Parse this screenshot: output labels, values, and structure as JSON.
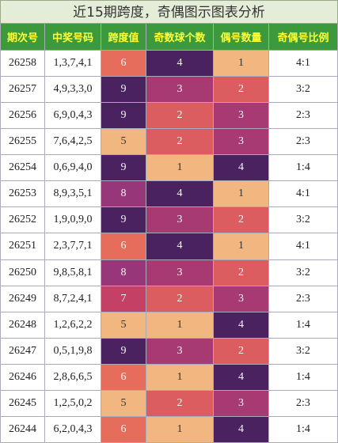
{
  "title": "近15期跨度，奇偶图示图表分析",
  "table": {
    "headers": [
      "期次号",
      "中奖号码",
      "跨度值",
      "奇数球个数",
      "偶号数量",
      "奇偶号比例"
    ],
    "rows": [
      [
        26258,
        "1,3,7,4,1",
        6,
        4,
        1,
        "4:1"
      ],
      [
        26257,
        "4,9,3,3,0",
        9,
        3,
        2,
        "3:2"
      ],
      [
        26256,
        "6,9,0,4,3",
        9,
        2,
        3,
        "2:3"
      ],
      [
        26255,
        "7,6,4,2,5",
        5,
        2,
        3,
        "2:3"
      ],
      [
        26254,
        "0,6,9,4,0",
        9,
        1,
        4,
        "1:4"
      ],
      [
        26253,
        "8,9,3,5,1",
        8,
        4,
        1,
        "4:1"
      ],
      [
        26252,
        "1,9,0,9,0",
        9,
        3,
        2,
        "3:2"
      ],
      [
        26251,
        "2,3,7,7,1",
        6,
        4,
        1,
        "4:1"
      ],
      [
        26250,
        "9,8,5,8,1",
        8,
        3,
        2,
        "3:2"
      ],
      [
        26249,
        "8,7,2,4,1",
        7,
        2,
        3,
        "2:3"
      ],
      [
        26248,
        "1,2,6,2,2",
        5,
        1,
        4,
        "1:4"
      ],
      [
        26247,
        "0,5,1,9,8",
        9,
        3,
        2,
        "3:2"
      ],
      [
        26246,
        "2,8,6,6,5",
        6,
        1,
        4,
        "1:4"
      ],
      [
        26245,
        "1,2,5,0,2",
        5,
        2,
        3,
        "2:3"
      ],
      [
        26244,
        "6,2,0,4,3",
        6,
        1,
        4,
        "1:4"
      ]
    ]
  }
}
